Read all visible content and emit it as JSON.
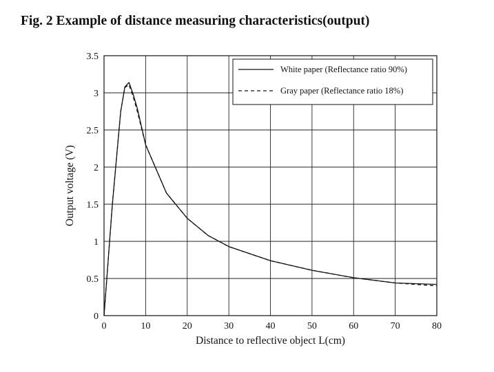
{
  "figure": {
    "title": "Fig. 2 Example of distance measuring characteristics(output)"
  },
  "chart_data": {
    "type": "line",
    "title": "Fig. 2 Example of distance measuring characteristics(output)",
    "xlabel": "Distance to reflective object L(cm)",
    "ylabel": "Output voltage (V)",
    "xlim": [
      0,
      80
    ],
    "ylim": [
      0,
      3.5
    ],
    "xticks": [
      0,
      10,
      20,
      30,
      40,
      50,
      60,
      70,
      80
    ],
    "yticks": [
      0,
      0.5,
      1,
      1.5,
      2,
      2.5,
      3,
      3.5
    ],
    "xtick_labels": [
      "0",
      "10",
      "20",
      "30",
      "40",
      "50",
      "60",
      "70",
      "80"
    ],
    "ytick_labels": [
      "0",
      "0.5",
      "1",
      "1.5",
      "2",
      "2.5",
      "3",
      "3.5"
    ],
    "grid": true,
    "legend_position": "top-right",
    "series": [
      {
        "name": "White paper (Reflectance ratio 90%)",
        "style": "solid",
        "color": "#111111",
        "x": [
          0,
          2,
          4,
          5,
          6,
          7,
          8,
          10,
          15,
          20,
          25,
          30,
          40,
          50,
          60,
          70,
          80
        ],
        "y": [
          0,
          1.5,
          2.75,
          3.08,
          3.14,
          2.98,
          2.79,
          2.3,
          1.65,
          1.31,
          1.08,
          0.93,
          0.74,
          0.61,
          0.51,
          0.44,
          0.42
        ]
      },
      {
        "name": "Gray paper (Reflectance ratio 18%)",
        "style": "dashed",
        "color": "#111111",
        "x": [
          0,
          2,
          4,
          5,
          6,
          7,
          8,
          10,
          15,
          20,
          25,
          30,
          40,
          50,
          60,
          70,
          80
        ],
        "y": [
          0,
          1.5,
          2.75,
          3.07,
          3.11,
          2.95,
          2.75,
          2.3,
          1.65,
          1.31,
          1.08,
          0.93,
          0.74,
          0.61,
          0.51,
          0.44,
          0.4
        ]
      }
    ]
  }
}
